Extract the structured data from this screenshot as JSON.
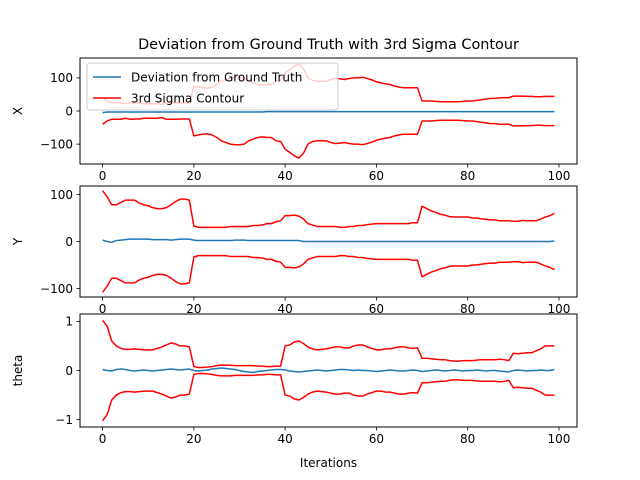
{
  "chart_data": {
    "type": "line",
    "title": "Deviation from Ground Truth with 3rd Sigma Contour",
    "xlabel": "Iterations",
    "legend": {
      "placement": "upper-left",
      "entries": [
        "Deviation from Ground Truth",
        "3rd Sigma Contour"
      ]
    },
    "colors": {
      "deviation": "#1f77b4",
      "sigma": "#ff0000"
    },
    "grid": false,
    "x": [
      0,
      1,
      2,
      3,
      4,
      5,
      6,
      7,
      8,
      9,
      10,
      11,
      12,
      13,
      14,
      15,
      16,
      17,
      18,
      19,
      20,
      21,
      22,
      23,
      24,
      25,
      26,
      27,
      28,
      29,
      30,
      31,
      32,
      33,
      34,
      35,
      36,
      37,
      38,
      39,
      40,
      41,
      42,
      43,
      44,
      45,
      46,
      47,
      48,
      49,
      50,
      51,
      52,
      53,
      54,
      55,
      56,
      57,
      58,
      59,
      60,
      61,
      62,
      63,
      64,
      65,
      66,
      67,
      68,
      69,
      70,
      71,
      72,
      73,
      74,
      75,
      76,
      77,
      78,
      79,
      80,
      81,
      82,
      83,
      84,
      85,
      86,
      87,
      88,
      89,
      90,
      91,
      92,
      93,
      94,
      95,
      96,
      97,
      98,
      99
    ],
    "subplots": [
      {
        "ylabel": "X",
        "xlim": [
          -4.95,
          103.95
        ],
        "ylim": [
          -160,
          160
        ],
        "xticks": [
          0,
          20,
          40,
          60,
          80,
          100
        ],
        "yticks": [
          -100,
          0,
          100
        ],
        "series": [
          {
            "name": "Deviation from Ground Truth",
            "role": "deviation",
            "values": [
              -5,
              -3,
              -3,
              -3,
              -3,
              -3,
              -3,
              -3,
              -3,
              -3,
              -3,
              -3,
              -3,
              -3,
              -3,
              -3,
              -3,
              -3,
              -3,
              -3,
              -3,
              -3,
              -3,
              -3,
              -3,
              -3,
              -3,
              -3,
              -3,
              -3,
              -3,
              -3,
              -3,
              -3,
              -3,
              -3,
              -2,
              -2,
              -2,
              -2,
              -2,
              -2,
              -2,
              -2,
              -2,
              -2,
              -2,
              -2,
              -2,
              -2,
              -2,
              -2,
              -2,
              -2,
              -2,
              -2,
              -2,
              -2,
              -2,
              -2,
              -2,
              -2,
              -2,
              -2,
              -2,
              -2,
              -2,
              -2,
              -2,
              -2,
              -2,
              -2,
              -2,
              -2,
              -2,
              -2,
              -2,
              -2,
              -2,
              -2,
              -2,
              -2,
              -2,
              -2,
              -2,
              -2,
              -2,
              -2,
              -2,
              -2,
              -2,
              -2,
              -2,
              -2,
              -2,
              -2,
              -2,
              -2,
              -2,
              -2
            ]
          },
          {
            "name": "3rd Sigma Contour",
            "role": "sigma",
            "values": [
              40,
              30,
              25,
              25,
              25,
              22,
              25,
              24,
              24,
              22,
              22,
              22,
              22,
              20,
              25,
              25,
              25,
              24,
              24,
              24,
              75,
              72,
              70,
              69,
              72,
              80,
              90,
              95,
              100,
              102,
              102,
              100,
              90,
              85,
              80,
              78,
              80,
              80,
              90,
              92,
              115,
              125,
              135,
              142,
              128,
              100,
              92,
              90,
              90,
              90,
              95,
              98,
              97,
              95,
              98,
              100,
              100,
              102,
              98,
              94,
              88,
              85,
              82,
              80,
              75,
              72,
              70,
              70,
              70,
              70,
              30,
              30,
              30,
              29,
              28,
              28,
              28,
              28,
              28,
              29,
              30,
              30,
              32,
              34,
              36,
              38,
              38,
              40,
              40,
              40,
              45,
              45,
              45,
              44,
              44,
              43,
              43,
              44,
              44,
              44
            ]
          }
        ]
      },
      {
        "ylabel": "Y",
        "xlim": [
          -4.95,
          103.95
        ],
        "ylim": [
          -118,
          118
        ],
        "xticks": [
          0,
          20,
          40,
          60,
          80,
          100
        ],
        "yticks": [
          -100,
          0,
          100
        ],
        "series": [
          {
            "name": "Deviation from Ground Truth",
            "role": "deviation",
            "values": [
              3,
              0,
              -2,
              2,
              3,
              4,
              5,
              5,
              5,
              5,
              5,
              4,
              4,
              4,
              4,
              3,
              4,
              5,
              5,
              5,
              3,
              2,
              2,
              2,
              2,
              2,
              2,
              2,
              2,
              3,
              3,
              3,
              2,
              2,
              2,
              2,
              2,
              2,
              2,
              2,
              2,
              2,
              2,
              2,
              0,
              0,
              0,
              0,
              0,
              0,
              0,
              0,
              0,
              0,
              0,
              0,
              0,
              0,
              0,
              0,
              0,
              0,
              0,
              0,
              0,
              0,
              0,
              0,
              0,
              0,
              0,
              0,
              0,
              0,
              0,
              0,
              0,
              0,
              0,
              0,
              0,
              0,
              0,
              0,
              0,
              0,
              0,
              0,
              0,
              0,
              0,
              0,
              0,
              0,
              0,
              0,
              0,
              0,
              0,
              1
            ]
          },
          {
            "name": "3rd Sigma Contour",
            "role": "sigma",
            "values": [
              108,
              95,
              78,
              78,
              83,
              88,
              88,
              88,
              82,
              78,
              76,
              72,
              70,
              70,
              72,
              78,
              85,
              90,
              90,
              88,
              33,
              30,
              30,
              30,
              30,
              30,
              30,
              30,
              32,
              32,
              32,
              32,
              32,
              34,
              34,
              35,
              38,
              38,
              42,
              44,
              55,
              55,
              56,
              54,
              48,
              38,
              35,
              32,
              32,
              32,
              32,
              32,
              30,
              30,
              32,
              32,
              34,
              34,
              36,
              37,
              38,
              38,
              38,
              38,
              38,
              38,
              38,
              38,
              40,
              40,
              75,
              70,
              65,
              62,
              58,
              56,
              53,
              52,
              52,
              52,
              52,
              50,
              50,
              48,
              47,
              46,
              46,
              44,
              44,
              44,
              43,
              43,
              45,
              44,
              44,
              44,
              48,
              52,
              55,
              60
            ]
          }
        ]
      },
      {
        "ylabel": "theta",
        "xlim": [
          -4.95,
          103.95
        ],
        "ylim": [
          -1.15,
          1.15
        ],
        "xticks": [
          0,
          20,
          40,
          60,
          80,
          100
        ],
        "yticks": [
          -1,
          0,
          1
        ],
        "series": [
          {
            "name": "Deviation from Ground Truth",
            "role": "deviation",
            "values": [
              0.02,
              0.0,
              -0.01,
              0.02,
              0.03,
              0.02,
              0.0,
              -0.01,
              0.0,
              0.01,
              0.0,
              -0.01,
              0.0,
              0.01,
              0.02,
              0.03,
              0.02,
              0.01,
              0.02,
              0.03,
              0.0,
              -0.01,
              0.0,
              0.01,
              0.03,
              0.04,
              0.05,
              0.04,
              0.03,
              0.02,
              0.0,
              -0.02,
              -0.03,
              -0.04,
              -0.02,
              -0.01,
              0.0,
              0.01,
              0.02,
              0.02,
              0.01,
              -0.01,
              -0.02,
              -0.03,
              -0.02,
              -0.01,
              0.0,
              0.01,
              0.0,
              -0.01,
              0.0,
              0.01,
              0.02,
              0.02,
              0.01,
              0.0,
              0.01,
              0.0,
              0.0,
              -0.01,
              -0.02,
              -0.01,
              0.0,
              0.01,
              0.0,
              -0.01,
              -0.01,
              0.0,
              0.01,
              0.0,
              -0.02,
              -0.01,
              0.0,
              0.01,
              0.0,
              -0.01,
              0.0,
              0.01,
              0.0,
              -0.01,
              0.0,
              0.0,
              0.01,
              0.0,
              -0.01,
              0.0,
              0.0,
              -0.01,
              -0.02,
              -0.03,
              0.0,
              0.01,
              0.0,
              -0.01,
              0.0,
              0.0,
              0.01,
              0.0,
              0.0,
              0.02
            ]
          },
          {
            "name": "3rd Sigma Contour",
            "role": "sigma",
            "values": [
              1.02,
              0.9,
              0.6,
              0.5,
              0.45,
              0.43,
              0.43,
              0.44,
              0.43,
              0.42,
              0.42,
              0.42,
              0.45,
              0.48,
              0.52,
              0.56,
              0.54,
              0.5,
              0.5,
              0.48,
              0.08,
              0.06,
              0.06,
              0.07,
              0.08,
              0.1,
              0.11,
              0.11,
              0.11,
              0.1,
              0.1,
              0.1,
              0.1,
              0.1,
              0.09,
              0.09,
              0.08,
              0.08,
              0.09,
              0.09,
              0.5,
              0.52,
              0.58,
              0.6,
              0.55,
              0.48,
              0.44,
              0.42,
              0.43,
              0.44,
              0.46,
              0.48,
              0.48,
              0.46,
              0.46,
              0.5,
              0.52,
              0.52,
              0.48,
              0.45,
              0.42,
              0.42,
              0.44,
              0.44,
              0.46,
              0.48,
              0.48,
              0.46,
              0.45,
              0.46,
              0.25,
              0.25,
              0.24,
              0.23,
              0.22,
              0.22,
              0.2,
              0.19,
              0.19,
              0.2,
              0.2,
              0.2,
              0.21,
              0.22,
              0.22,
              0.22,
              0.22,
              0.23,
              0.22,
              0.2,
              0.35,
              0.34,
              0.35,
              0.36,
              0.36,
              0.4,
              0.44,
              0.5,
              0.5,
              0.5
            ]
          }
        ]
      }
    ]
  }
}
